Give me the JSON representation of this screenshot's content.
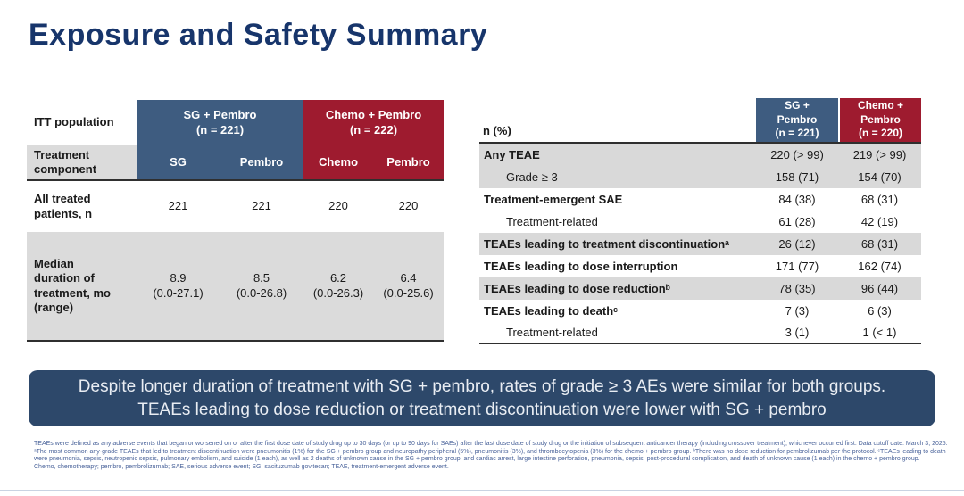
{
  "slide": {
    "title": "Exposure and Safety Summary"
  },
  "colors": {
    "title_navy": "#17356B",
    "header_blue": "#3E5C80",
    "header_red": "#9E1B2F",
    "row_gray": "#D9D9D9",
    "callout_navy": "#2D486A",
    "footnote_blue": "#4A639A"
  },
  "left_table": {
    "corner_label": "ITT population",
    "groups": [
      {
        "label": "SG + Pembro\n(n = 221)"
      },
      {
        "label": "Chemo + Pembro\n(n = 222)"
      }
    ],
    "component_label": "Treatment\ncomponent",
    "sub_headers": [
      "SG",
      "Pembro",
      "Chemo",
      "Pembro"
    ],
    "rows": [
      {
        "label": "All treated\npatients, n",
        "values": [
          "221",
          "221",
          "220",
          "220"
        ]
      },
      {
        "label": "Median\nduration of\ntreatment, mo\n(range)",
        "values": [
          "8.9\n(0.0-27.1)",
          "8.5\n(0.0-26.8)",
          "6.2\n(0.0-26.3)",
          "6.4\n(0.0-25.6)"
        ]
      }
    ]
  },
  "right_table": {
    "corner_label": "n (%)",
    "col_headers": [
      "SG +\nPembro\n(n = 221)",
      "Chemo +\nPembro\n(n = 220)"
    ],
    "rows": [
      {
        "label": "Any TEAE",
        "sg_pembro": "220 (> 99)",
        "chemo_pembro": "219 (> 99)"
      },
      {
        "label": "Grade ≥ 3",
        "sg_pembro": "158 (71)",
        "chemo_pembro": "154 (70)"
      },
      {
        "label": "Treatment-emergent SAE",
        "sg_pembro": "84 (38)",
        "chemo_pembro": "68 (31)"
      },
      {
        "label": "Treatment-related",
        "sg_pembro": "61 (28)",
        "chemo_pembro": "42 (19)"
      },
      {
        "label": "TEAEs leading to treatment discontinuationᵃ",
        "sg_pembro": "26 (12)",
        "chemo_pembro": "68 (31)"
      },
      {
        "label": "TEAEs leading to dose interruption",
        "sg_pembro": "171 (77)",
        "chemo_pembro": "162 (74)"
      },
      {
        "label": "TEAEs leading to dose reductionᵇ",
        "sg_pembro": "78 (35)",
        "chemo_pembro": "96 (44)"
      },
      {
        "label": "TEAEs leading to deathᶜ",
        "sg_pembro": "7 (3)",
        "chemo_pembro": "6 (3)"
      },
      {
        "label": "Treatment-related",
        "sg_pembro": "3 (1)",
        "chemo_pembro": "1 (< 1)"
      }
    ]
  },
  "callout": {
    "text": "Despite longer duration of treatment with SG + pembro, rates of grade ≥ 3 AEs were similar for both groups. TEAEs leading to dose reduction or treatment discontinuation were lower with SG + pembro"
  },
  "footnotes": {
    "p1": "TEAEs were defined as any adverse events that began or worsened on or after the first dose date of study drug up to 30 days (or up to 90 days for SAEs) after the last dose date of study drug or the initiation of subsequent anticancer therapy (including crossover treatment), whichever occurred first. Data cutoff date: March 3, 2025.",
    "p2": "ᵃThe most common any-grade TEAEs that led to treatment discontinuation were pneumonitis (1%) for the SG + pembro group and neuropathy peripheral (5%), pneumonitis (3%), and thrombocytopenia (3%) for the chemo + pembro group. ᵇThere was no dose reduction for pembrolizumab per the protocol. ᶜTEAEs leading to death were pneumonia, sepsis, neutropenic sepsis, pulmonary embolism, and suicide (1 each), as well as 2 deaths of unknown cause in the SG + pembro group, and cardiac arrest, large intestine perforation, pneumonia, sepsis, post-procedural complication, and death of unknown cause (1 each) in the chemo + pembro group.",
    "p3": "Chemo, chemotherapy; pembro, pembrolizumab; SAE, serious adverse event; SG, sacituzumab govitecan; TEAE, treatment-emergent adverse event."
  }
}
